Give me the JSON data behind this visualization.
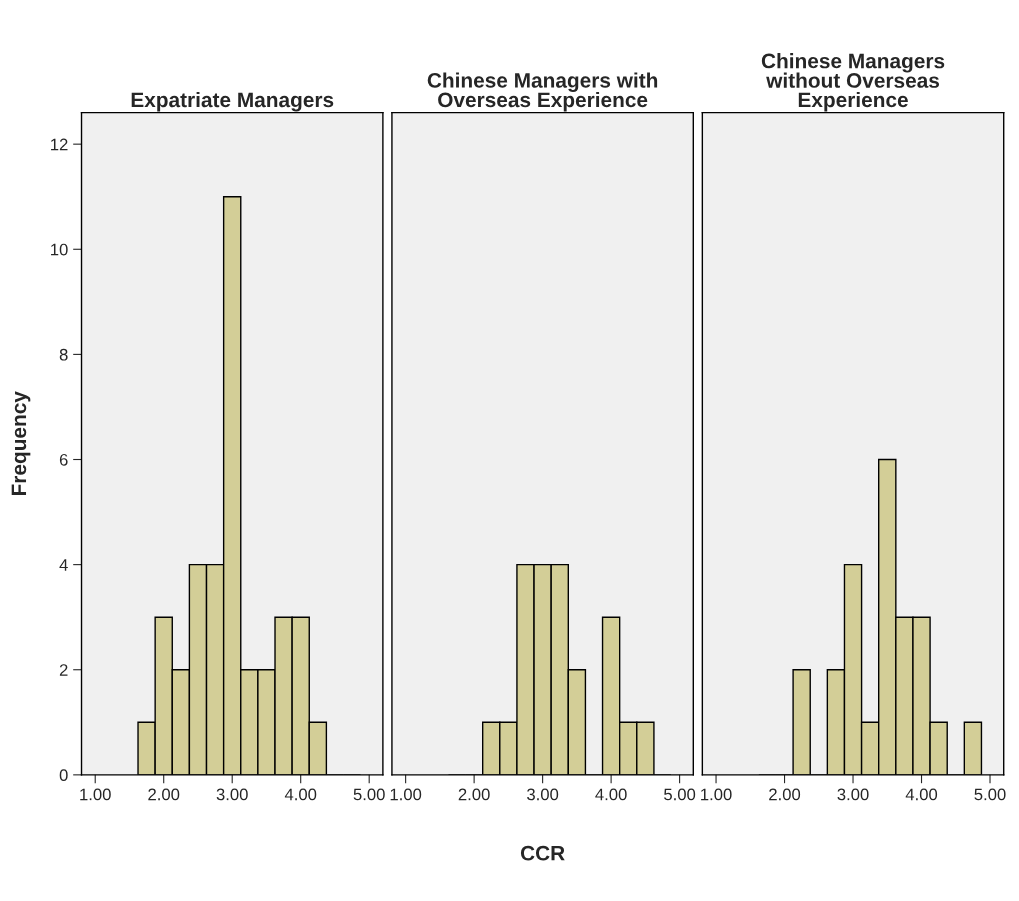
{
  "chart_data": [
    {
      "type": "histogram",
      "title": "Expatriate Managers",
      "ylabel": "Frequency",
      "bins": [
        1.625,
        1.875,
        2.125,
        2.375,
        2.625,
        2.875,
        3.125,
        3.375,
        3.625,
        3.875,
        4.125,
        4.375,
        4.625,
        4.875
      ],
      "values": [
        1,
        3,
        2,
        4,
        4,
        11,
        2,
        2,
        3,
        3,
        1,
        0,
        0
      ],
      "color": "#d3ce97",
      "xlim": [
        0.8,
        5.2
      ],
      "ylim": [
        0,
        12.6
      ],
      "xticks": [
        {
          "value": 1,
          "label": "1.00"
        },
        {
          "value": 2,
          "label": "2.00"
        },
        {
          "value": 3,
          "label": "3.00"
        },
        {
          "value": 4,
          "label": "4.00"
        },
        {
          "value": 5,
          "label": "5.00"
        }
      ],
      "yticks": [
        0,
        2,
        4,
        6,
        8,
        10,
        12
      ],
      "grid": false
    },
    {
      "type": "histogram",
      "title": "Chinese Managers with\nOverseas Experience",
      "xlabel": "CCR",
      "bins": [
        1.625,
        1.875,
        2.125,
        2.375,
        2.625,
        2.875,
        3.125,
        3.375,
        3.625,
        3.875,
        4.125,
        4.375,
        4.625,
        4.875
      ],
      "values": [
        0,
        0,
        1,
        1,
        4,
        4,
        4,
        2,
        0,
        3,
        1,
        1,
        0
      ],
      "color": "#d3ce97",
      "xlim": [
        0.8,
        5.2
      ],
      "ylim": [
        0,
        12.6
      ],
      "xticks": [
        {
          "value": 1,
          "label": "1.00"
        },
        {
          "value": 2,
          "label": "2.00"
        },
        {
          "value": 3,
          "label": "3.00"
        },
        {
          "value": 4,
          "label": "4.00"
        },
        {
          "value": 5,
          "label": "5.00"
        }
      ],
      "yticks": [
        0,
        2,
        4,
        6,
        8,
        10,
        12
      ],
      "tick_labels": "x",
      "grid": false
    },
    {
      "type": "histogram",
      "title": "Chinese Managers\nwithout Overseas\nExperience",
      "bins": [
        1.625,
        1.875,
        2.125,
        2.375,
        2.625,
        2.875,
        3.125,
        3.375,
        3.625,
        3.875,
        4.125,
        4.375,
        4.625,
        4.875
      ],
      "values": [
        0,
        0,
        2,
        0,
        2,
        4,
        1,
        6,
        3,
        3,
        1,
        0,
        1
      ],
      "color": "#d3ce97",
      "xlim": [
        0.8,
        5.2
      ],
      "ylim": [
        0,
        12.6
      ],
      "xticks": [
        {
          "value": 1,
          "label": "1.00"
        },
        {
          "value": 2,
          "label": "2.00"
        },
        {
          "value": 3,
          "label": "3.00"
        },
        {
          "value": 4,
          "label": "4.00"
        },
        {
          "value": 5,
          "label": "5.00"
        }
      ],
      "yticks": [
        0,
        2,
        4,
        6,
        8,
        10,
        12
      ],
      "tick_labels": "x",
      "grid": false
    }
  ]
}
